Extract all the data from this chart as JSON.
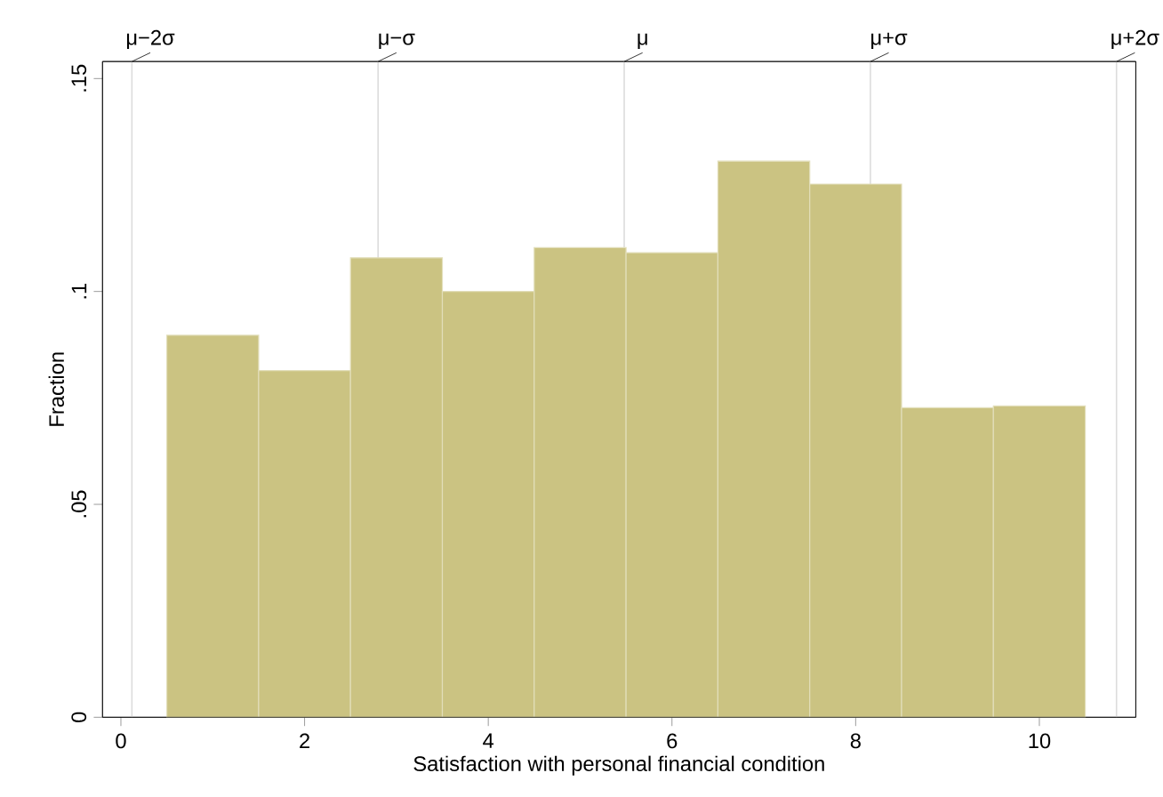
{
  "chart_data": {
    "type": "histogram",
    "xlabel": "Satisfaction with personal financial condition",
    "ylabel": "Fraction",
    "bins": [
      0.5,
      1.5,
      2.5,
      3.5,
      4.5,
      5.5,
      6.5,
      7.5,
      8.5,
      9.5,
      10.5
    ],
    "values": [
      0.0897,
      0.0814,
      0.1079,
      0.1,
      0.1103,
      0.1091,
      0.1306,
      0.1252,
      0.0727,
      0.0731
    ],
    "color": "#cbc382",
    "xlim": [
      -0.2,
      11.05
    ],
    "ylim": [
      0,
      0.154
    ],
    "xticks": [
      0,
      2,
      4,
      6,
      8,
      10
    ],
    "yticks": [
      0,
      {
        "value": 0.05,
        "label": ".05"
      },
      {
        "value": 0.1,
        "label": ".1"
      },
      {
        "value": 0.15,
        "label": ".15"
      }
    ],
    "ref_lines": [
      {
        "axis": "x",
        "value": 0.12,
        "label": "μ−2σ",
        "color": "#dcdcdc"
      },
      {
        "axis": "x",
        "value": 2.8,
        "label": "μ−σ",
        "color": "#dcdcdc"
      },
      {
        "axis": "x",
        "value": 5.48,
        "label": "μ",
        "color": "#dcdcdc"
      },
      {
        "axis": "x",
        "value": 8.16,
        "label": "μ+σ",
        "color": "#dcdcdc"
      },
      {
        "axis": "x",
        "value": 10.84,
        "label": "μ+2σ",
        "color": "#dcdcdc"
      }
    ],
    "grid": false
  }
}
